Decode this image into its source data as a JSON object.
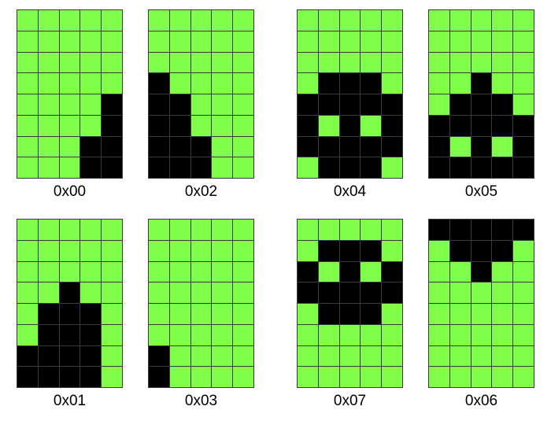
{
  "colors": {
    "off_cell": "#7fff4a",
    "on_cell": "#000000",
    "grid_line": "#3a3a3a"
  },
  "tiles": [
    {
      "label": "0x00",
      "rows": [
        "00000",
        "00000",
        "00000",
        "00000",
        "00001",
        "00001",
        "00011",
        "00011"
      ]
    },
    {
      "label": "0x02",
      "rows": [
        "00000",
        "00000",
        "00000",
        "10000",
        "11000",
        "11000",
        "11100",
        "11100"
      ]
    },
    {
      "label": "0x04",
      "rows": [
        "00000",
        "00000",
        "00000",
        "01110",
        "11111",
        "10101",
        "11111",
        "01110"
      ]
    },
    {
      "label": "0x05",
      "rows": [
        "00000",
        "00000",
        "00000",
        "00100",
        "01110",
        "11111",
        "10101",
        "11111"
      ]
    },
    {
      "label": "0x01",
      "rows": [
        "00000",
        "00000",
        "00000",
        "00100",
        "01110",
        "01110",
        "11110",
        "11110"
      ]
    },
    {
      "label": "0x03",
      "rows": [
        "00000",
        "00000",
        "00000",
        "00000",
        "00000",
        "00000",
        "10000",
        "10000"
      ]
    },
    {
      "label": "0x07",
      "rows": [
        "00000",
        "01110",
        "10101",
        "11111",
        "01110",
        "00000",
        "00000",
        "00000"
      ]
    },
    {
      "label": "0x06",
      "rows": [
        "11111",
        "01110",
        "00100",
        "00000",
        "00000",
        "00000",
        "00000",
        "00000"
      ]
    }
  ]
}
